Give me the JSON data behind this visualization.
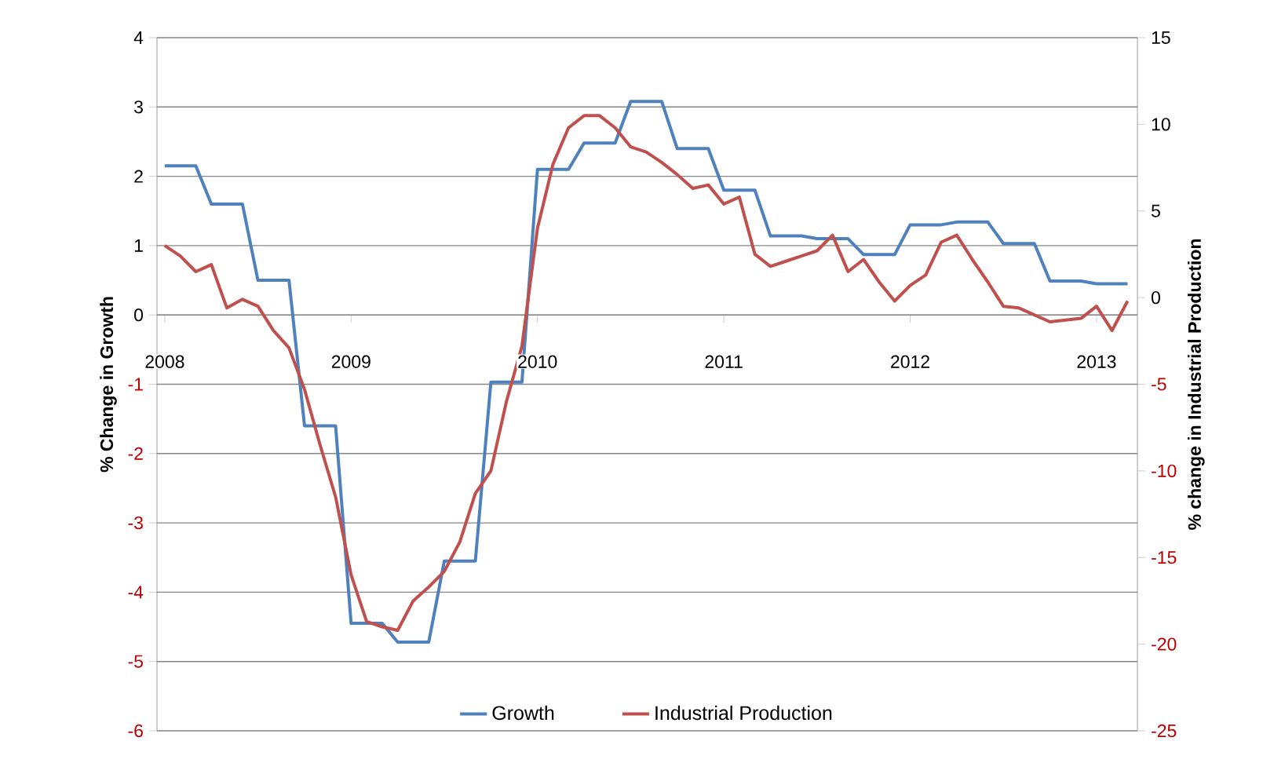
{
  "chart_data": {
    "type": "line",
    "xlabel": null,
    "ylabel": "% Change in Growth",
    "y2label": "% change in Industrial Production",
    "x": [
      "2008-01",
      "2008-02",
      "2008-03",
      "2008-04",
      "2008-05",
      "2008-06",
      "2008-07",
      "2008-08",
      "2008-09",
      "2008-10",
      "2008-11",
      "2008-12",
      "2009-01",
      "2009-02",
      "2009-03",
      "2009-04",
      "2009-05",
      "2009-06",
      "2009-07",
      "2009-08",
      "2009-09",
      "2009-10",
      "2009-11",
      "2009-12",
      "2010-01",
      "2010-02",
      "2010-03",
      "2010-04",
      "2010-05",
      "2010-06",
      "2010-07",
      "2010-08",
      "2010-09",
      "2010-10",
      "2010-11",
      "2010-12",
      "2011-01",
      "2011-02",
      "2011-03",
      "2011-04",
      "2011-05",
      "2011-06",
      "2011-07",
      "2011-08",
      "2011-09",
      "2011-10",
      "2011-11",
      "2011-12",
      "2012-01",
      "2012-02",
      "2012-03",
      "2012-04",
      "2012-05",
      "2012-06",
      "2012-07",
      "2012-08",
      "2012-09",
      "2012-10",
      "2012-11",
      "2012-12",
      "2013-01",
      "2013-02",
      "2013-03"
    ],
    "series": [
      {
        "name": "Growth",
        "color": "#4f81bd",
        "values": [
          2.15,
          2.15,
          2.15,
          1.6,
          1.6,
          1.6,
          0.5,
          0.5,
          0.5,
          -1.6,
          -1.6,
          -1.6,
          -4.45,
          -4.45,
          -4.45,
          -4.72,
          -4.72,
          -4.72,
          -3.55,
          -3.55,
          -3.55,
          -0.97,
          -0.97,
          -0.97,
          2.1,
          2.1,
          2.1,
          2.48,
          2.48,
          2.48,
          3.08,
          3.08,
          3.08,
          2.4,
          2.4,
          2.4,
          1.8,
          1.8,
          1.8,
          1.14,
          1.14,
          1.14,
          1.1,
          1.1,
          1.1,
          0.87,
          0.87,
          0.87,
          1.3,
          1.3,
          1.3,
          1.34,
          1.34,
          1.34,
          1.03,
          1.03,
          1.03,
          0.49,
          0.49,
          0.49,
          0.45,
          0.45,
          0.45
        ]
      },
      {
        "name": "Industrial Production",
        "color": "#c0504d",
        "axis": "y2",
        "values": [
          3.0,
          2.4,
          1.5,
          1.9,
          -0.6,
          -0.1,
          -0.5,
          -1.9,
          -2.9,
          -5.3,
          -8.5,
          -11.5,
          -16.0,
          -18.7,
          -19.0,
          -19.2,
          -17.5,
          -16.7,
          -15.8,
          -14.1,
          -11.3,
          -10.0,
          -6.0,
          -2.8,
          4.0,
          7.7,
          9.8,
          10.5,
          10.5,
          9.8,
          8.7,
          8.4,
          7.8,
          7.1,
          6.3,
          6.5,
          5.4,
          5.8,
          2.5,
          1.8,
          2.1,
          2.4,
          2.7,
          3.6,
          1.5,
          2.2,
          0.9,
          -0.2,
          0.7,
          1.3,
          3.2,
          3.6,
          2.2,
          0.9,
          -0.5,
          -0.6,
          -1.0,
          -1.4,
          -1.3,
          -1.2,
          -0.5,
          -1.9,
          -0.2
        ]
      }
    ],
    "xlim": [
      "2007-12-16",
      "2013-03-20"
    ],
    "xticks": [
      "2008",
      "2009",
      "2010",
      "2011",
      "2012",
      "2013"
    ],
    "ylim": [
      -6,
      4
    ],
    "yticks": [
      -6,
      -5,
      -4,
      -3,
      -2,
      -1,
      0,
      1,
      2,
      3,
      4
    ],
    "y2lim": [
      -25,
      15
    ],
    "y2ticks": [
      -25,
      -20,
      -15,
      -10,
      -5,
      0,
      5,
      10,
      15
    ],
    "grid": "y",
    "legend": "bottom"
  }
}
